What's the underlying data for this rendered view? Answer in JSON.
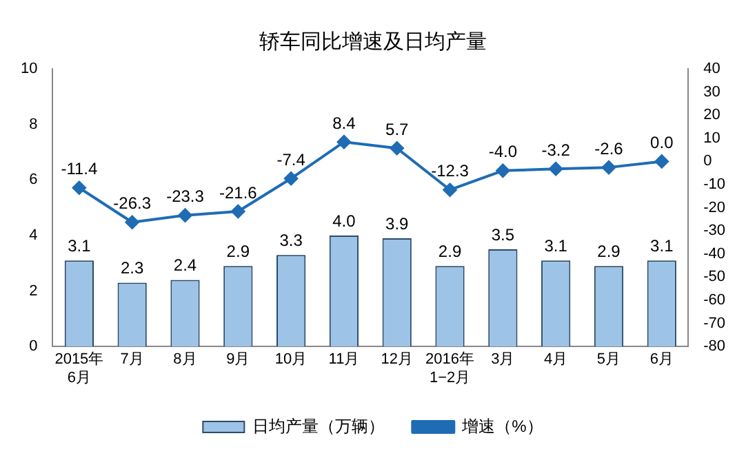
{
  "chart_data": {
    "type": "bar",
    "title": "轿车同比增速及日均产量",
    "categories": [
      "2015年\n6月",
      "7月",
      "8月",
      "9月",
      "10月",
      "11月",
      "12月",
      "2016年\n1−2月",
      "3月",
      "4月",
      "5月",
      "6月"
    ],
    "series": [
      {
        "name": "日均产量（万辆）",
        "color": "#9dc3e6",
        "values": [
          3.1,
          2.3,
          2.4,
          2.9,
          3.3,
          4.0,
          3.9,
          2.9,
          3.5,
          3.1,
          2.9,
          3.1
        ],
        "value_labels": [
          "3.1",
          "2.3",
          "2.4",
          "2.9",
          "3.3",
          "4.0",
          "3.9",
          "2.9",
          "3.5",
          "3.1",
          "2.9",
          "3.1"
        ]
      },
      {
        "name": "增速（%）",
        "type": "line",
        "axis": "y2",
        "color": "#1f6cb5",
        "values": [
          -11.4,
          -26.3,
          -23.3,
          -21.6,
          -7.4,
          8.4,
          5.7,
          -12.3,
          -4.0,
          -3.2,
          -2.6,
          0.0
        ],
        "value_labels": [
          "-11.4",
          "-26.3",
          "-23.3",
          "-21.6",
          "-7.4",
          "8.4",
          "5.7",
          "-12.3",
          "-4.0",
          "-3.2",
          "-2.6",
          "0.0"
        ]
      }
    ],
    "ylim": [
      0,
      10
    ],
    "yticks": [
      0,
      2,
      4,
      6,
      8,
      10
    ],
    "y2lim": [
      -80,
      40
    ],
    "y2ticks": [
      -80,
      -70,
      -60,
      -50,
      -40,
      -30,
      -20,
      -10,
      0,
      10,
      20,
      30,
      40
    ],
    "grid": false,
    "legend": "bottom",
    "marker": "diamond",
    "line_style": "solid"
  }
}
